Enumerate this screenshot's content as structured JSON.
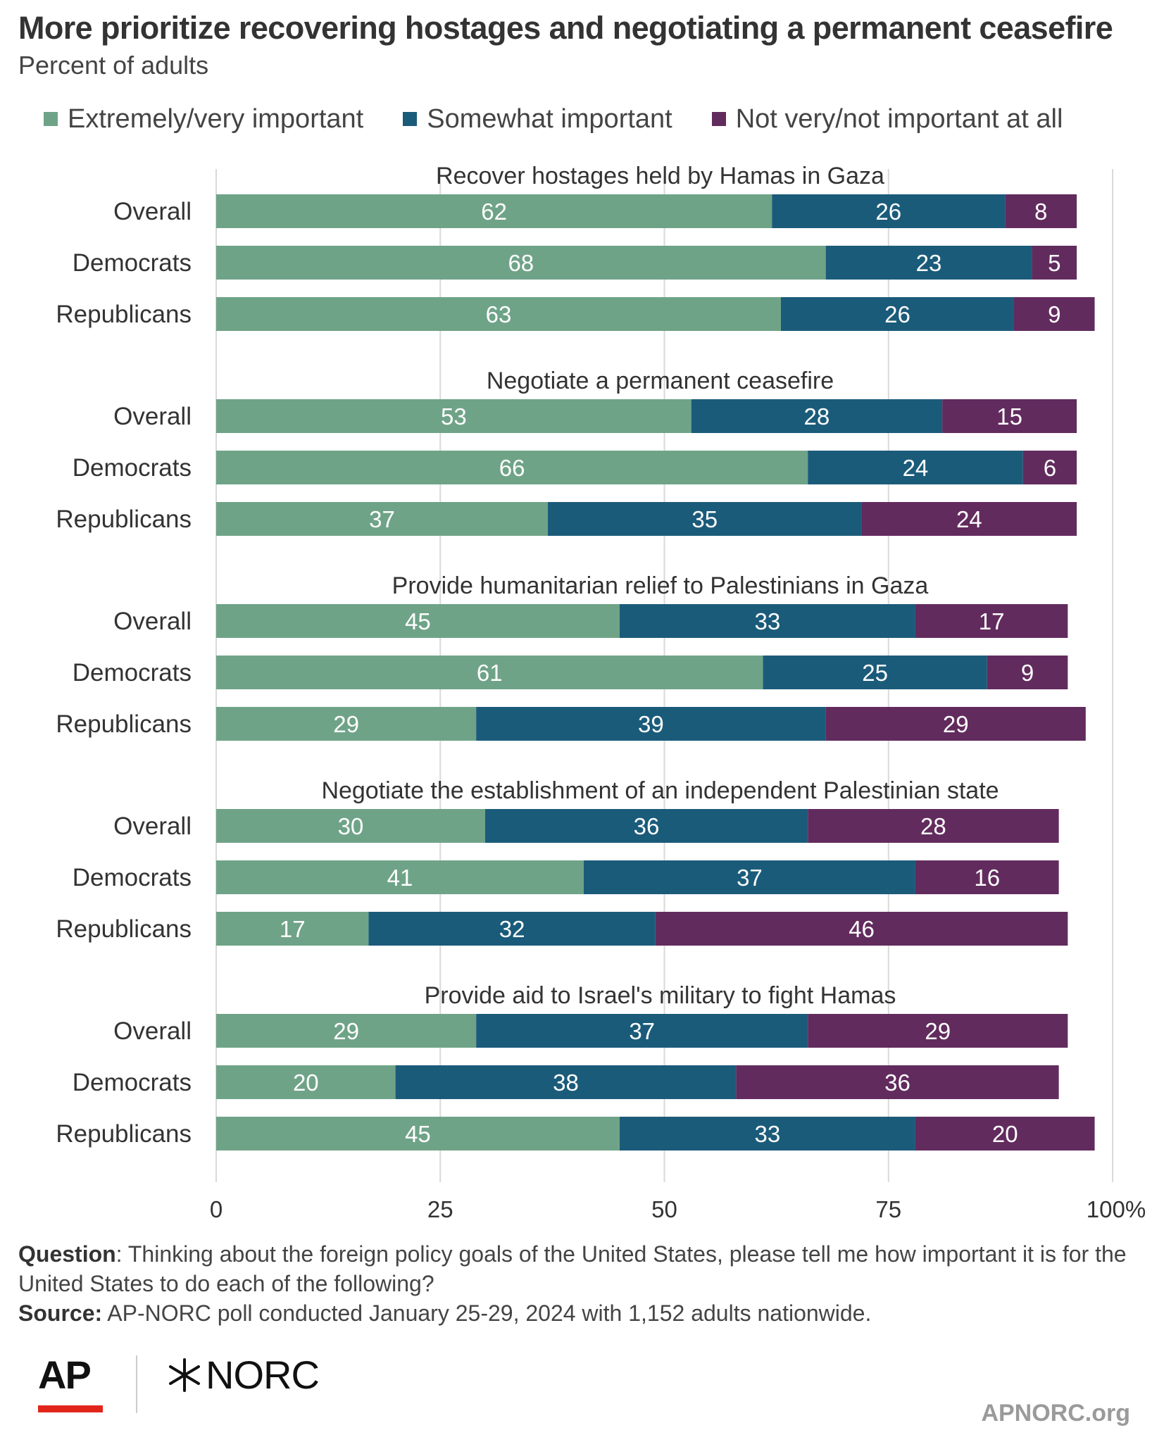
{
  "title": "More prioritize recovering hostages and negotiating a permanent ceasefire",
  "subtitle": "Percent of adults",
  "colors": {
    "extremely": "#6fa387",
    "somewhat": "#1b5b7a",
    "not": "#622b5e",
    "bar_text": "#ffffff",
    "axis_text": "#333333",
    "grid": "#d9d9d9"
  },
  "footer": {
    "question_label": "Question",
    "question_text": ": Thinking about the foreign policy goals of the United States, please tell me how important it is for the United States to do each of the following?",
    "source_label": "Source:",
    "source_text": " AP-NORC poll conducted January 25-29, 2024 with 1,152 adults nationwide."
  },
  "logos": {
    "ap": "AP",
    "norc": "NORC",
    "site": "APNORC.org"
  },
  "chart_data": {
    "type": "bar",
    "orientation": "horizontal",
    "stacked": true,
    "series_names": [
      "Extremely/very important",
      "Somewhat important",
      "Not very/not important at all"
    ],
    "xlim": [
      0,
      100
    ],
    "x_ticks": [
      "0",
      "25",
      "50",
      "75",
      "100%"
    ],
    "legend_position": "top",
    "grid": "vertical",
    "groups": [
      {
        "title": "Recover hostages held by Hamas in Gaza",
        "rows": [
          {
            "label": "Overall",
            "values": [
              62,
              26,
              8
            ]
          },
          {
            "label": "Democrats",
            "values": [
              68,
              23,
              5
            ]
          },
          {
            "label": "Republicans",
            "values": [
              63,
              26,
              9
            ]
          }
        ]
      },
      {
        "title": "Negotiate a permanent ceasefire",
        "rows": [
          {
            "label": "Overall",
            "values": [
              53,
              28,
              15
            ]
          },
          {
            "label": "Democrats",
            "values": [
              66,
              24,
              6
            ]
          },
          {
            "label": "Republicans",
            "values": [
              37,
              35,
              24
            ]
          }
        ]
      },
      {
        "title": "Provide humanitarian relief to Palestinians in Gaza",
        "rows": [
          {
            "label": "Overall",
            "values": [
              45,
              33,
              17
            ]
          },
          {
            "label": "Democrats",
            "values": [
              61,
              25,
              9
            ]
          },
          {
            "label": "Republicans",
            "values": [
              29,
              39,
              29
            ]
          }
        ]
      },
      {
        "title": "Negotiate the establishment of an independent Palestinian state",
        "rows": [
          {
            "label": "Overall",
            "values": [
              30,
              36,
              28
            ]
          },
          {
            "label": "Democrats",
            "values": [
              41,
              37,
              16
            ]
          },
          {
            "label": "Republicans",
            "values": [
              17,
              32,
              46
            ]
          }
        ]
      },
      {
        "title": "Provide aid to Israel's military to fight Hamas",
        "rows": [
          {
            "label": "Overall",
            "values": [
              29,
              37,
              29
            ]
          },
          {
            "label": "Democrats",
            "values": [
              20,
              38,
              36
            ]
          },
          {
            "label": "Republicans",
            "values": [
              45,
              33,
              20
            ]
          }
        ]
      }
    ]
  }
}
